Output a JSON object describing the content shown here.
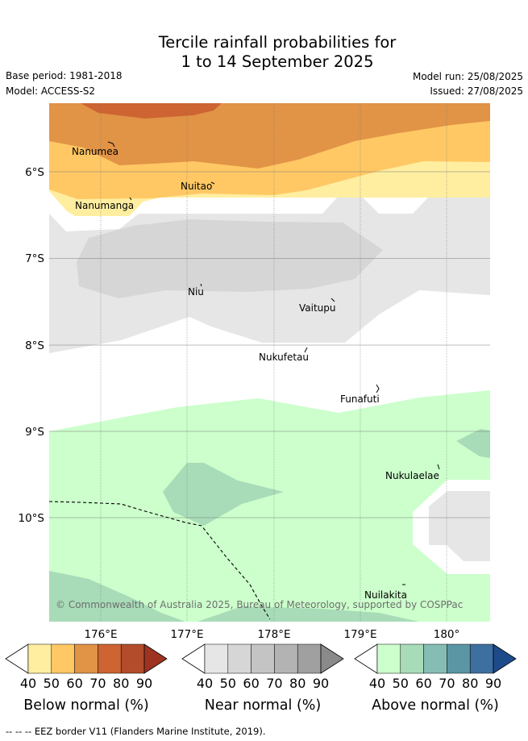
{
  "title": {
    "line1": "Tercile rainfall probabilities for",
    "line2": "1 to 14 September 2025"
  },
  "meta": {
    "base_period": "Base period: 1981-2018",
    "model": "Model: ACCESS-S2",
    "model_run": "Model run: 25/08/2025",
    "issued": "Issued: 27/08/2025"
  },
  "map": {
    "lat_labels": [
      "6°S",
      "7°S",
      "8°S",
      "9°S",
      "10°S"
    ],
    "lon_labels": [
      "176°E",
      "177°E",
      "178°E",
      "179°E",
      "180°"
    ],
    "places": [
      "Nanumea",
      "Nuitao",
      "Nanumanga",
      "Niu",
      "Vaitupu",
      "Nukufetau",
      "Funafuti",
      "Nukulaelae",
      "Nuilakita"
    ],
    "copyright": "© Commonwealth of Australia 2025, Bureau of Meteorology, supported by COSPPac"
  },
  "colorbars": [
    {
      "title": "Below normal (%)",
      "ticks": [
        "40",
        "50",
        "60",
        "70",
        "80",
        "90"
      ],
      "colors": [
        "#ffffff",
        "#ffeea0",
        "#ffc864",
        "#e19346",
        "#cd6432",
        "#b24c2b",
        "#9f3322"
      ]
    },
    {
      "title": "Near normal (%)",
      "ticks": [
        "40",
        "50",
        "60",
        "70",
        "80",
        "90"
      ],
      "colors": [
        "#ffffff",
        "#e6e6e6",
        "#d6d6d6",
        "#c4c4c4",
        "#b3b3b3",
        "#a0a0a0",
        "#8a8a8a"
      ]
    },
    {
      "title": "Above normal (%)",
      "ticks": [
        "40",
        "50",
        "60",
        "70",
        "80",
        "90"
      ],
      "colors": [
        "#ffffff",
        "#ccffcc",
        "#a8dcb8",
        "#85bdb4",
        "#5b96a4",
        "#3d6fa0",
        "#1d4a8a"
      ]
    }
  ],
  "footer": "-- -- -- EEZ border V11 (Flanders Marine Institute, 2019)."
}
